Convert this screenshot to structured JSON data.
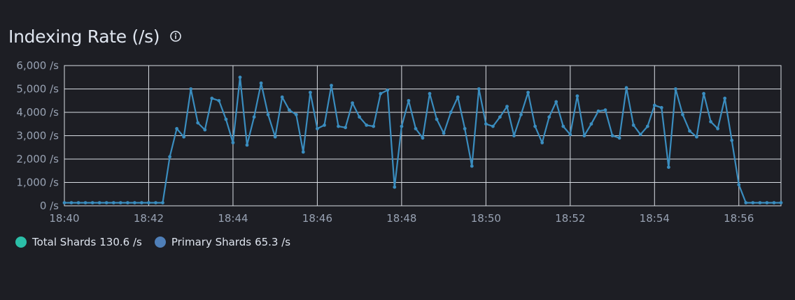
{
  "panel": {
    "title": "Indexing Rate (/s)",
    "info_icon": "info-circle-icon"
  },
  "legend": [
    {
      "label": "Total Shards",
      "value": "130.6 /s",
      "color": "#2bbfa8"
    },
    {
      "label": "Primary Shards",
      "value": "65.3 /s",
      "color": "#4f7fb8"
    }
  ],
  "chart_data": {
    "type": "line",
    "grid": true,
    "x_unit": "minutes",
    "xlim": [
      "18:40",
      "18:57"
    ],
    "xticks": [
      "18:40",
      "18:42",
      "18:44",
      "18:46",
      "18:48",
      "18:50",
      "18:52",
      "18:54",
      "18:56"
    ],
    "ylim": [
      0,
      6000
    ],
    "yticks": [
      "0 /s",
      "1,000 /s",
      "2,000 /s",
      "3,000 /s",
      "4,000 /s",
      "5,000 /s",
      "6,000 /s"
    ],
    "line_color": "#3a8dbf",
    "series": [
      {
        "name": "Total Shards",
        "x": [
          "18:40:00",
          "18:40:10",
          "18:40:20",
          "18:40:30",
          "18:40:40",
          "18:40:50",
          "18:41:00",
          "18:41:10",
          "18:41:20",
          "18:41:30",
          "18:41:40",
          "18:41:50",
          "18:42:00",
          "18:42:10",
          "18:42:20",
          "18:42:30",
          "18:42:40",
          "18:42:50",
          "18:43:00",
          "18:43:10",
          "18:43:20",
          "18:43:30",
          "18:43:40",
          "18:43:50",
          "18:44:00",
          "18:44:10",
          "18:44:20",
          "18:44:30",
          "18:44:40",
          "18:44:50",
          "18:45:00",
          "18:45:10",
          "18:45:20",
          "18:45:30",
          "18:45:40",
          "18:45:50",
          "18:46:00",
          "18:46:10",
          "18:46:20",
          "18:46:30",
          "18:46:40",
          "18:46:50",
          "18:47:00",
          "18:47:10",
          "18:47:20",
          "18:47:30",
          "18:47:40",
          "18:47:50",
          "18:48:00",
          "18:48:10",
          "18:48:20",
          "18:48:30",
          "18:48:40",
          "18:48:50",
          "18:49:00",
          "18:49:10",
          "18:49:20",
          "18:49:30",
          "18:49:40",
          "18:49:50",
          "18:50:00",
          "18:50:10",
          "18:50:20",
          "18:50:30",
          "18:50:40",
          "18:50:50",
          "18:51:00",
          "18:51:10",
          "18:51:20",
          "18:51:30",
          "18:51:40",
          "18:51:50",
          "18:52:00",
          "18:52:10",
          "18:52:20",
          "18:52:30",
          "18:52:40",
          "18:52:50",
          "18:53:00",
          "18:53:10",
          "18:53:20",
          "18:53:30",
          "18:53:40",
          "18:53:50",
          "18:54:00",
          "18:54:10",
          "18:54:20",
          "18:54:30",
          "18:54:40",
          "18:54:50",
          "18:55:00",
          "18:55:10",
          "18:55:20",
          "18:55:30",
          "18:55:40",
          "18:55:50",
          "18:56:00",
          "18:56:10",
          "18:56:20",
          "18:56:30",
          "18:56:40",
          "18:56:50",
          "18:57:00"
        ],
        "y": [
          130,
          130,
          130,
          130,
          130,
          130,
          130,
          130,
          130,
          130,
          130,
          130,
          130,
          130,
          130,
          2100,
          3300,
          2950,
          5000,
          3550,
          3250,
          4600,
          4500,
          3700,
          2700,
          5500,
          2600,
          3800,
          5250,
          3900,
          2950,
          4650,
          4100,
          3900,
          2300,
          4850,
          3300,
          3450,
          5150,
          3400,
          3350,
          4400,
          3800,
          3450,
          3400,
          4800,
          4950,
          800,
          3400,
          4500,
          3300,
          2900,
          4800,
          3700,
          3100,
          4000,
          4650,
          3300,
          1700,
          5000,
          3500,
          3400,
          3800,
          4250,
          3000,
          3900,
          4850,
          3400,
          2700,
          3800,
          4450,
          3400,
          3050,
          4700,
          3000,
          3500,
          4050,
          4100,
          3000,
          2900,
          5050,
          3450,
          3050,
          3400,
          4300,
          4200,
          1650,
          5000,
          3900,
          3200,
          2950,
          4800,
          3600,
          3300,
          4600,
          2800,
          900,
          130,
          130,
          130,
          130,
          130,
          130
        ]
      }
    ]
  }
}
